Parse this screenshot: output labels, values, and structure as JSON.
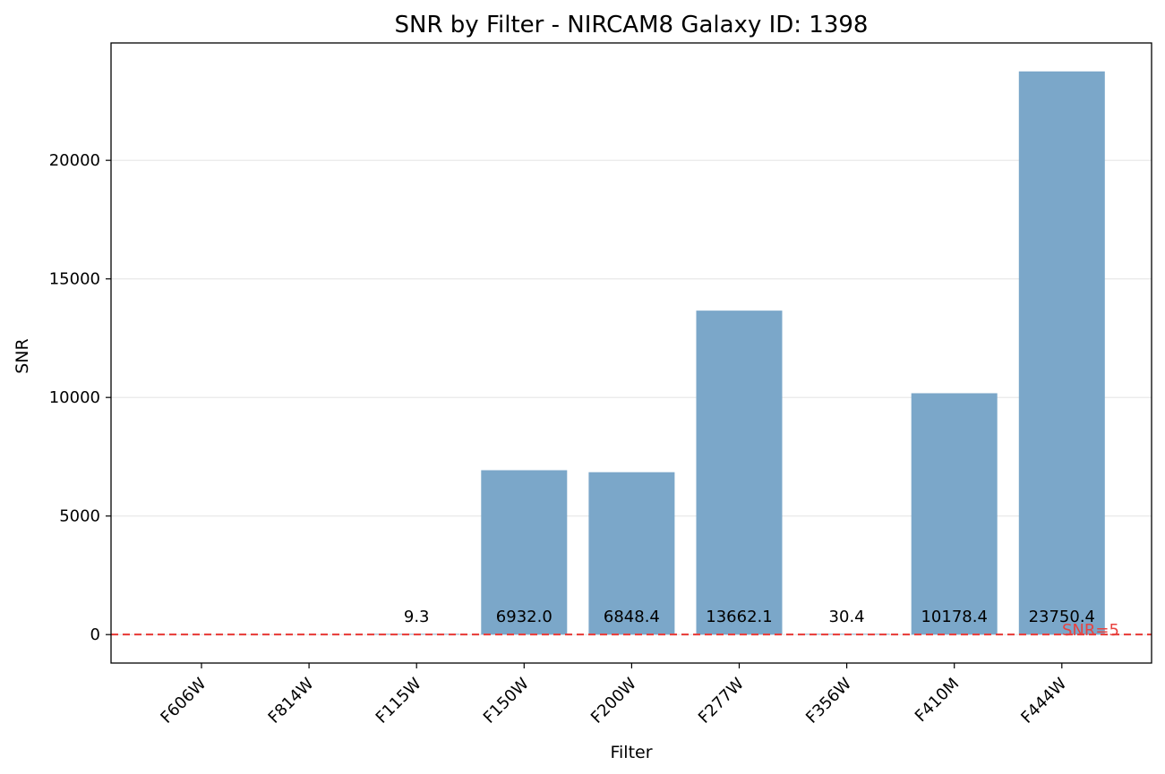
{
  "chart_data": {
    "type": "bar",
    "title": "SNR by Filter - NIRCAM8 Galaxy ID: 1398",
    "xlabel": "Filter",
    "ylabel": "SNR",
    "categories": [
      "F606W",
      "F814W",
      "F115W",
      "F150W",
      "F200W",
      "F277W",
      "F356W",
      "F410M",
      "F444W"
    ],
    "values": [
      null,
      null,
      9.3,
      6932.0,
      6848.4,
      13662.1,
      30.4,
      10178.4,
      23750.4
    ],
    "value_labels": [
      "",
      "",
      "9.3",
      "6932.0",
      "6848.4",
      "13662.1",
      "30.4",
      "10178.4",
      "23750.4"
    ],
    "ylim": [
      -1200,
      24950
    ],
    "yticks": [
      0,
      5000,
      10000,
      15000,
      20000
    ],
    "grid": "horizontal",
    "bar_color": "#7ba7c9",
    "reference_line": {
      "value": 5,
      "label": "SNR=5",
      "color": "#e8423f",
      "style": "dashed"
    }
  }
}
